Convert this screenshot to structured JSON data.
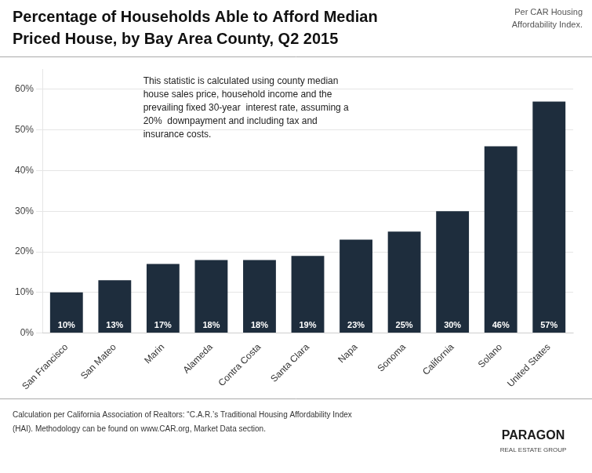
{
  "chart_data": {
    "type": "bar",
    "title": [
      "Percentage of Households Able to Afford Median",
      "Priced House, by Bay Area County, Q2 2015"
    ],
    "annotations": [
      "Per CAR Housing\nAffordability Index.",
      "This statistic is calculated using county median\nhouse sales price, household income and the\nprevailing fixed 30-year  interest rate, assuming a\n20%  downpayment and including tax and\ninsurance costs.",
      "Calculation per California Association of Realtors: “C.A.R.’s Traditional Housing Affordability Index",
      "(HAI). Methodology can be found on www.CAR.org, Market Data section.",
      "PARAGON",
      "REAL ESTATE GROUP"
    ],
    "categories": [
      "San Francisco",
      "San Mateo",
      "Marin",
      "Alameda",
      "Contra Costa",
      "Santa Clara",
      "Napa",
      "Sonoma",
      "California",
      "Solano",
      "United States"
    ],
    "values": [
      10,
      13,
      17,
      18,
      18,
      19,
      23,
      25,
      30,
      46,
      57
    ],
    "value_labels": [
      "10%",
      "13%",
      "17%",
      "18%",
      "18%",
      "19%",
      "23%",
      "25%",
      "30%",
      "46%",
      "57%"
    ],
    "data_labels": true,
    "color": "#1e2d3d",
    "ylim": [
      0,
      65
    ],
    "yticks": [
      {
        "value": 0,
        "label": "0%"
      },
      {
        "value": 10,
        "label": "10%"
      },
      {
        "value": 20,
        "label": "20%"
      },
      {
        "value": 30,
        "label": "30%"
      },
      {
        "value": 40,
        "label": "40%"
      },
      {
        "value": 50,
        "label": "50%"
      },
      {
        "value": 60,
        "label": "60%"
      }
    ],
    "grid": true
  }
}
